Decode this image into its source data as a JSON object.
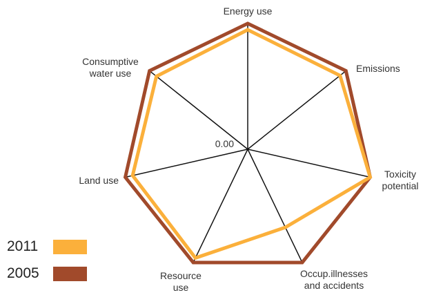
{
  "chart_data": {
    "type": "radar",
    "categories": [
      "Energy use",
      "Emissions",
      "Toxicity\npotential",
      "Occup.illnesses\nand accidents",
      "Resource\nuse",
      "Land use",
      "Consumptive\nwater use"
    ],
    "series": [
      {
        "name": "2011",
        "color": "#fbb03b",
        "values": [
          0.95,
          0.94,
          1.0,
          0.69,
          0.96,
          0.94,
          0.93
        ]
      },
      {
        "name": "2005",
        "color": "#a14a2b",
        "values": [
          1.0,
          1.0,
          1.0,
          1.0,
          1.0,
          1.0,
          1.0
        ]
      }
    ],
    "rlim": [
      0,
      1
    ],
    "rticks": [
      {
        "value": 0,
        "label": "0.00"
      }
    ]
  }
}
